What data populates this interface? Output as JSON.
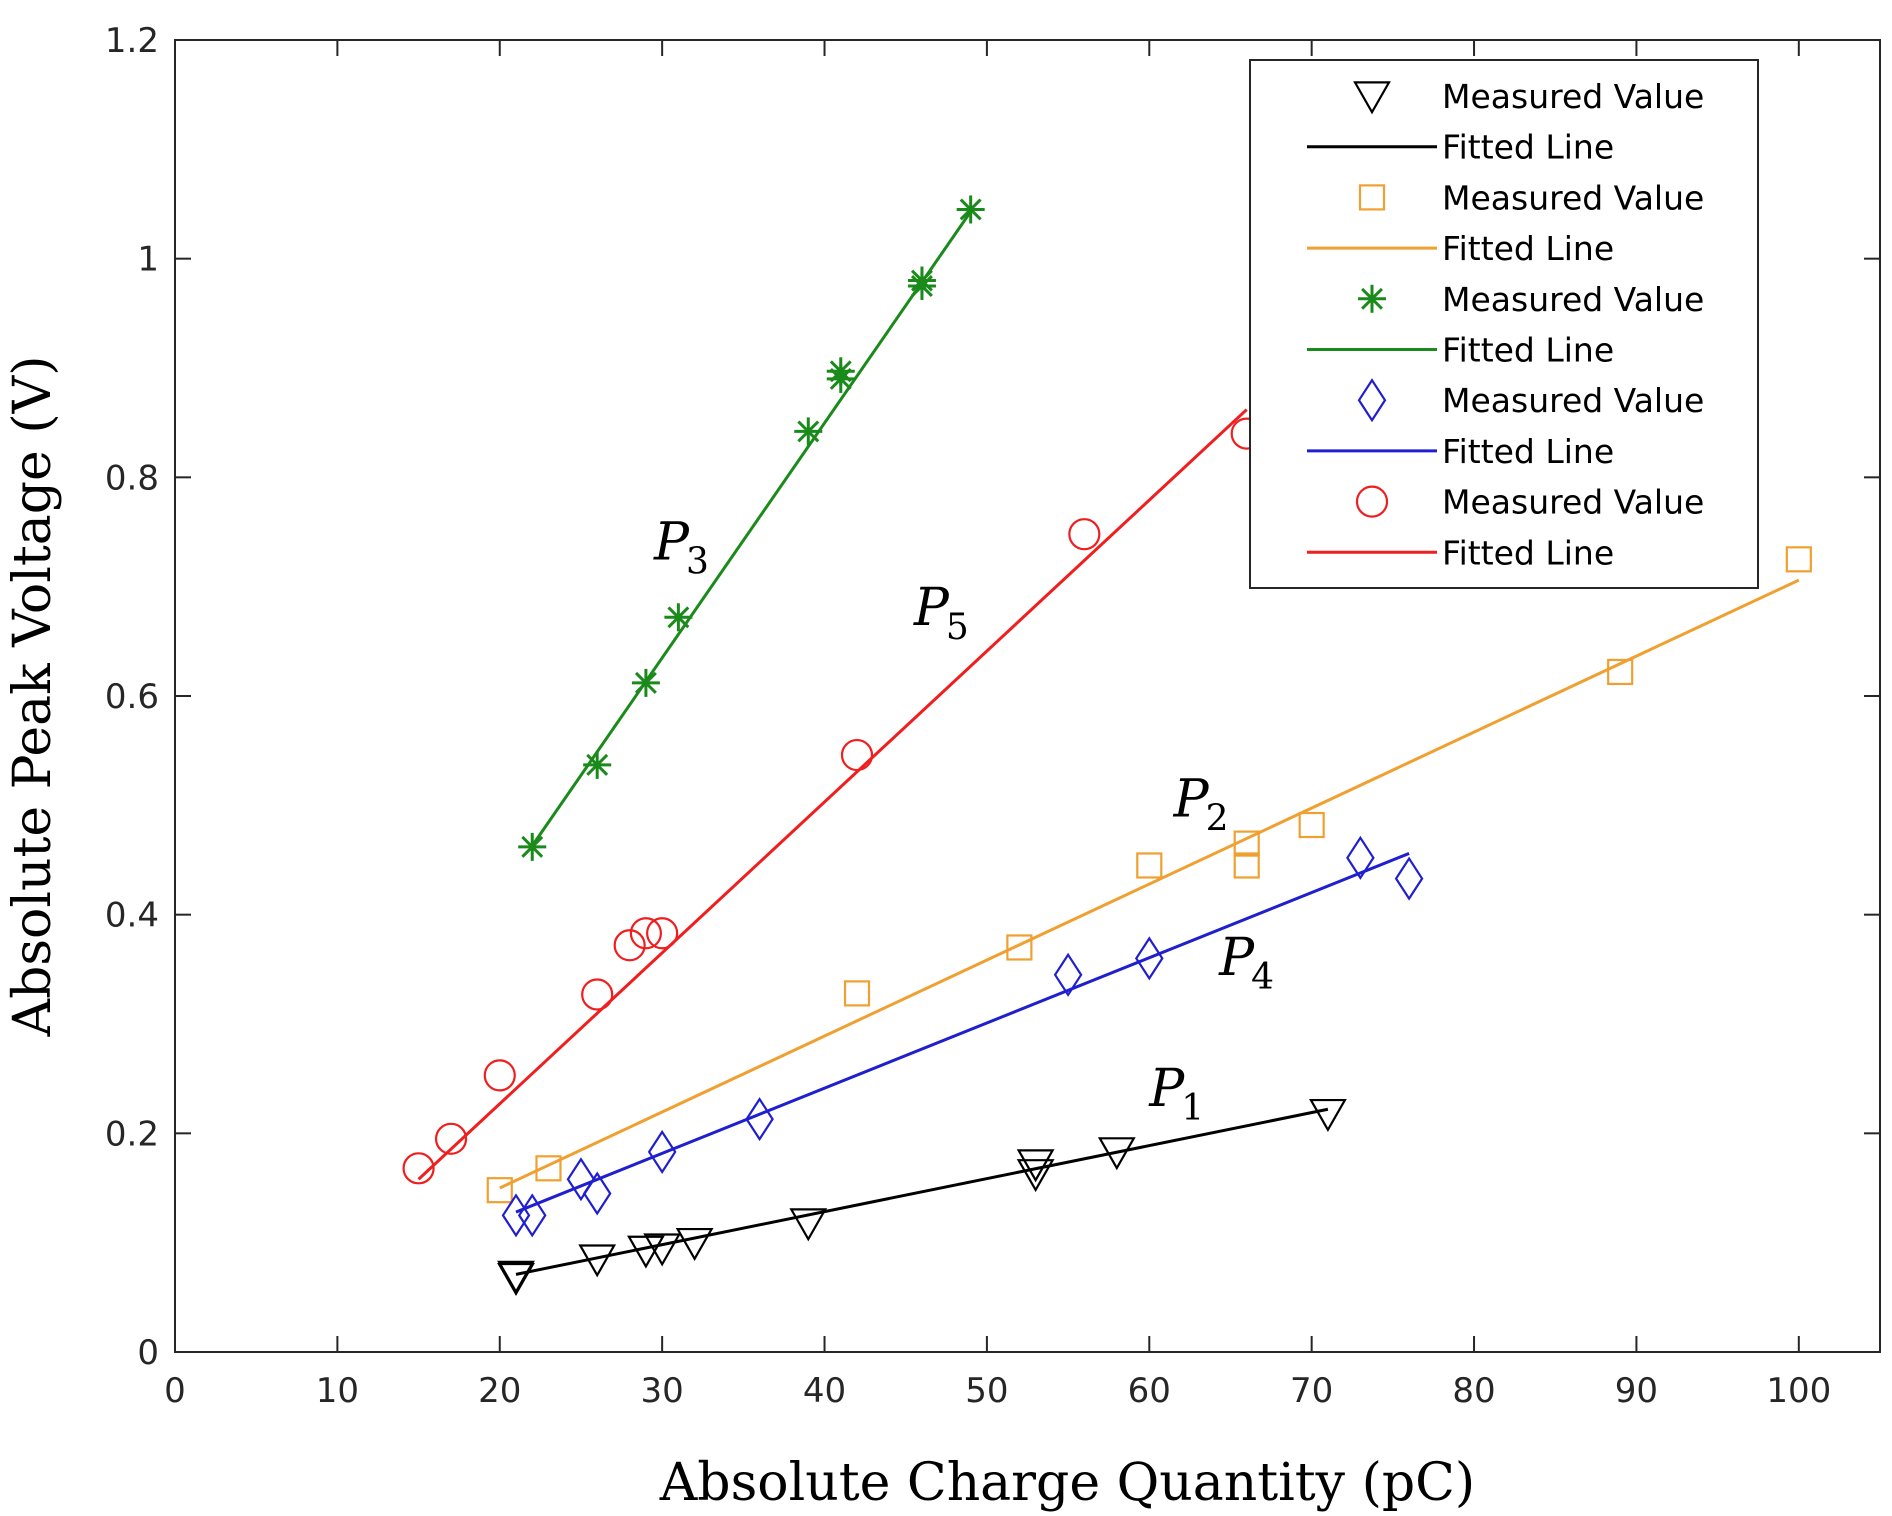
{
  "chart_data": {
    "type": "scatter",
    "title": "",
    "xlabel": "Absolute Charge Quantity (pC)",
    "ylabel": "Absolute Peak Voltage (V)",
    "xlim": [
      0,
      105
    ],
    "ylim": [
      0,
      1.2
    ],
    "xticks": [
      0,
      10,
      20,
      30,
      40,
      50,
      60,
      70,
      80,
      90,
      100
    ],
    "xtick_labels": [
      "0",
      "10",
      "20",
      "30",
      "40",
      "50",
      "60",
      "70",
      "80",
      "90",
      "100"
    ],
    "yticks": [
      0,
      0.2,
      0.4,
      0.6,
      0.8,
      1,
      1.2
    ],
    "ytick_labels": [
      "0",
      "0.2",
      "0.4",
      "0.6",
      "0.8",
      "1",
      "1.2"
    ],
    "grid": false,
    "legend_position": "top-right",
    "series": [
      {
        "name": "P1",
        "label_text": "P",
        "label_sub": "1",
        "label_at": [
          60,
          0.225
        ],
        "color": "#000000",
        "marker": "triangle-down",
        "measured_label": "Measured Value",
        "fit_label": "Fitted Line",
        "x": [
          21,
          21,
          26,
          29,
          30,
          32,
          39,
          53,
          53,
          58,
          71
        ],
        "y": [
          0.07,
          0.068,
          0.085,
          0.093,
          0.095,
          0.1,
          0.118,
          0.163,
          0.172,
          0.183,
          0.218
        ],
        "fit": [
          [
            21,
            0.071
          ],
          [
            71,
            0.222
          ]
        ]
      },
      {
        "name": "P2",
        "label_text": "P",
        "label_sub": "2",
        "label_at": [
          61.5,
          0.49
        ],
        "color": "#F0A030",
        "marker": "square",
        "measured_label": "Measured Value",
        "fit_label": "Fitted Line",
        "x": [
          20,
          23,
          42,
          52,
          60,
          66,
          66,
          70,
          89,
          100
        ],
        "y": [
          0.148,
          0.168,
          0.328,
          0.37,
          0.445,
          0.445,
          0.465,
          0.482,
          0.622,
          0.725
        ],
        "fit": [
          [
            20,
            0.15
          ],
          [
            100,
            0.706
          ]
        ]
      },
      {
        "name": "P3",
        "label_text": "P",
        "label_sub": "3",
        "label_at": [
          29.5,
          0.725
        ],
        "color": "#1A8A1A",
        "marker": "asterisk",
        "measured_label": "Measured Value",
        "fit_label": "Fitted Line",
        "x": [
          22,
          26,
          29,
          31,
          39,
          41,
          41,
          46,
          46,
          49
        ],
        "y": [
          0.462,
          0.537,
          0.612,
          0.672,
          0.842,
          0.89,
          0.897,
          0.975,
          0.98,
          1.045
        ],
        "fit": [
          [
            22,
            0.463
          ],
          [
            49,
            1.043
          ]
        ]
      },
      {
        "name": "P4",
        "label_text": "P",
        "label_sub": "4",
        "label_at": [
          64.3,
          0.345
        ],
        "color": "#1F1FD0",
        "marker": "diamond",
        "measured_label": "Measured Value",
        "fit_label": "Fitted Line",
        "x": [
          21,
          22,
          25,
          26,
          30,
          36,
          55,
          60,
          73,
          76
        ],
        "y": [
          0.125,
          0.125,
          0.158,
          0.145,
          0.183,
          0.213,
          0.345,
          0.36,
          0.452,
          0.433
        ],
        "fit": [
          [
            21,
            0.128
          ],
          [
            76,
            0.456
          ]
        ]
      },
      {
        "name": "P5",
        "label_text": "P",
        "label_sub": "5",
        "label_at": [
          45.5,
          0.665
        ],
        "color": "#F01E1E",
        "marker": "circle",
        "measured_label": "Measured Value",
        "fit_label": "Fitted Line",
        "x": [
          15,
          17,
          20,
          26,
          28,
          29,
          30,
          42,
          56,
          66
        ],
        "y": [
          0.168,
          0.195,
          0.253,
          0.327,
          0.372,
          0.383,
          0.383,
          0.546,
          0.748,
          0.84
        ],
        "fit": [
          [
            15,
            0.158
          ],
          [
            66,
            0.862
          ]
        ]
      }
    ]
  }
}
